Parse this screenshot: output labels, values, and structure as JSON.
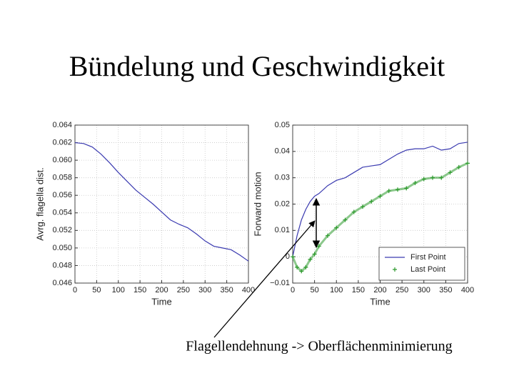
{
  "slide": {
    "title": "Bündelung und Geschwindigkeit",
    "caption": "Flagellendehnung -> Oberflächenminimierung"
  },
  "chart_data": [
    {
      "type": "line",
      "xlabel": "Time",
      "ylabel": "Avrg. flagella dist.",
      "x": [
        0,
        20,
        40,
        60,
        80,
        100,
        120,
        140,
        160,
        180,
        200,
        220,
        240,
        260,
        280,
        300,
        320,
        340,
        360,
        380,
        400
      ],
      "series": [
        {
          "name": null,
          "color": "#3a3ab0",
          "values": [
            0.062,
            0.0619,
            0.0615,
            0.0607,
            0.0597,
            0.0586,
            0.0576,
            0.0566,
            0.0558,
            0.055,
            0.0541,
            0.0532,
            0.0527,
            0.0523,
            0.0516,
            0.0508,
            0.0502,
            0.05,
            0.0498,
            0.0492,
            0.0485
          ]
        }
      ],
      "xlim": [
        0,
        400
      ],
      "xticks": [
        0,
        50,
        100,
        150,
        200,
        250,
        300,
        350,
        400
      ],
      "ylim": [
        0.046,
        0.064
      ],
      "yticks": [
        0.046,
        0.048,
        {
          "value": 0.05,
          "label": "0.050"
        },
        0.052,
        0.054,
        0.056,
        0.058,
        {
          "value": 0.06,
          "label": "0.060"
        },
        0.062,
        0.064
      ],
      "grid": true
    },
    {
      "type": "line",
      "xlabel": "Time",
      "ylabel": "Forward motion",
      "x": [
        0,
        10,
        20,
        30,
        40,
        50,
        60,
        80,
        100,
        120,
        140,
        160,
        180,
        200,
        220,
        240,
        260,
        280,
        300,
        320,
        340,
        360,
        380,
        400
      ],
      "series": [
        {
          "name": "First Point",
          "color": "#3a3ab0",
          "values": [
            0,
            0.008,
            0.014,
            0.018,
            0.021,
            0.023,
            0.024,
            0.027,
            0.029,
            0.03,
            0.032,
            0.034,
            0.0345,
            0.035,
            0.037,
            0.039,
            0.0405,
            0.041,
            0.041,
            0.042,
            0.0405,
            0.041,
            0.043,
            0.0435
          ]
        },
        {
          "name": "Last Point",
          "color": "#2e9a2e",
          "marker": "+",
          "values": [
            0,
            -0.004,
            -0.0055,
            -0.004,
            -0.001,
            0.001,
            0.004,
            0.008,
            0.011,
            0.014,
            0.017,
            0.019,
            0.021,
            0.023,
            0.025,
            0.0255,
            0.026,
            0.028,
            0.0295,
            0.03,
            0.03,
            0.032,
            0.034,
            0.0355
          ]
        }
      ],
      "xlim": [
        0,
        400
      ],
      "xticks": [
        0,
        50,
        100,
        150,
        200,
        250,
        300,
        350,
        400
      ],
      "ylim": [
        -0.01,
        0.05
      ],
      "yticks": [
        {
          "value": -0.01,
          "label": "−0.01"
        },
        0,
        0.01,
        0.02,
        0.03,
        0.04,
        0.05
      ],
      "grid": true,
      "legend": "lower right"
    }
  ]
}
